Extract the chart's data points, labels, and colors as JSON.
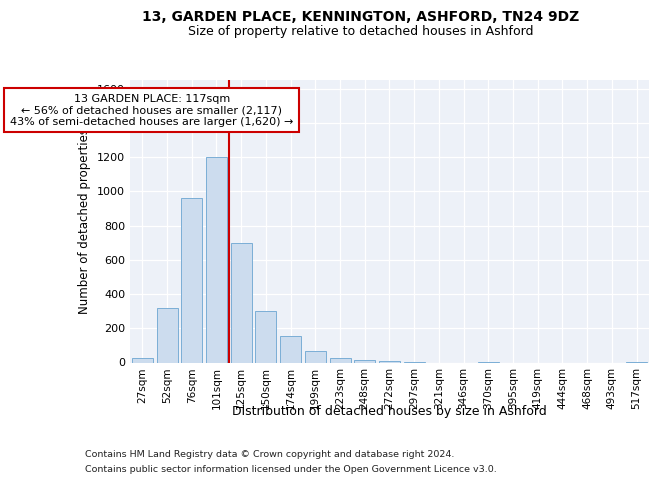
{
  "title": "13, GARDEN PLACE, KENNINGTON, ASHFORD, TN24 9DZ",
  "subtitle": "Size of property relative to detached houses in Ashford",
  "xlabel": "Distribution of detached houses by size in Ashford",
  "ylabel": "Number of detached properties",
  "bar_labels": [
    "27sqm",
    "52sqm",
    "76sqm",
    "101sqm",
    "125sqm",
    "150sqm",
    "174sqm",
    "199sqm",
    "223sqm",
    "248sqm",
    "272sqm",
    "297sqm",
    "321sqm",
    "346sqm",
    "370sqm",
    "395sqm",
    "419sqm",
    "444sqm",
    "468sqm",
    "493sqm",
    "517sqm"
  ],
  "bar_values": [
    25,
    320,
    960,
    1200,
    700,
    300,
    155,
    70,
    25,
    15,
    8,
    5,
    0,
    0,
    5,
    0,
    0,
    0,
    0,
    0,
    5
  ],
  "bar_color": "#ccdcee",
  "bar_edge_color": "#7aaed6",
  "vline_color": "#cc0000",
  "vline_xindex": 3.5,
  "annotation_text": "13 GARDEN PLACE: 117sqm\n← 56% of detached houses are smaller (2,117)\n43% of semi-detached houses are larger (1,620) →",
  "annotation_box_facecolor": "#ffffff",
  "annotation_box_edgecolor": "#cc0000",
  "ylim": [
    0,
    1650
  ],
  "yticks": [
    0,
    200,
    400,
    600,
    800,
    1000,
    1200,
    1400,
    1600
  ],
  "bg_color": "#edf1f8",
  "footer_line1": "Contains HM Land Registry data © Crown copyright and database right 2024.",
  "footer_line2": "Contains public sector information licensed under the Open Government Licence v3.0."
}
